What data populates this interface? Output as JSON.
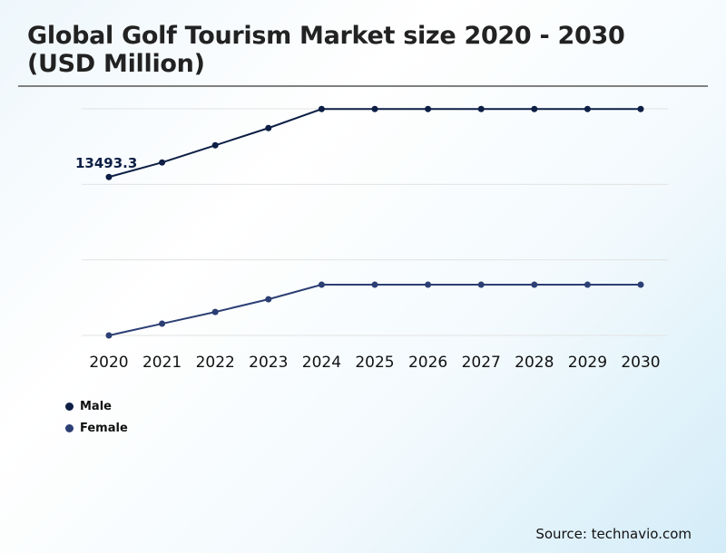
{
  "chart_data": {
    "type": "line",
    "title": "Global Golf Tourism Market size 2020 - 2030 (USD Million)",
    "xlabel": "",
    "ylabel": "",
    "categories": [
      "2020",
      "2021",
      "2022",
      "2023",
      "2024",
      "2025",
      "2026",
      "2027",
      "2028",
      "2029",
      "2030"
    ],
    "ylim": [
      0,
      19300
    ],
    "grid": true,
    "legend_position": "bottom-left",
    "series": [
      {
        "name": "Male",
        "color": "#0d1f45",
        "values": [
          13493.3,
          14730,
          16190,
          17660,
          19280,
          19280,
          19280,
          19280,
          19280,
          19280,
          19280
        ]
      },
      {
        "name": "Female",
        "color": "#2c3f74",
        "values": [
          0,
          1000,
          2000,
          3080,
          4320,
          4320,
          4320,
          4320,
          4320,
          4320,
          4320
        ]
      }
    ],
    "annotations": [
      {
        "series": "Male",
        "category": "2020",
        "text": "13493.3"
      }
    ]
  },
  "source": "Source: technavio.com"
}
